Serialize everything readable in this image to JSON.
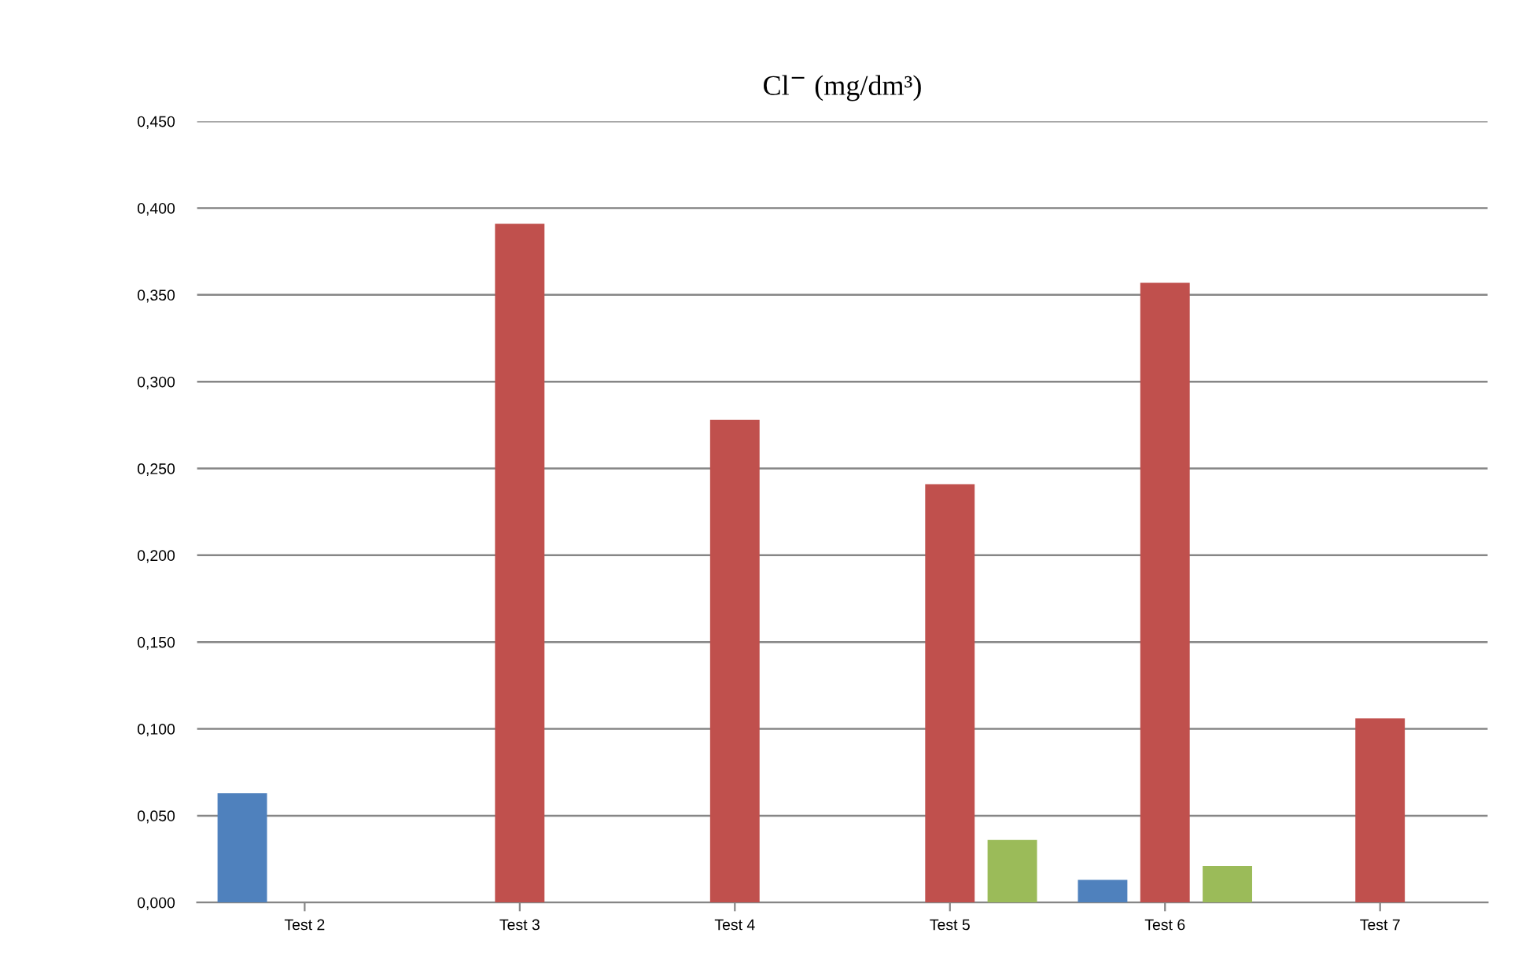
{
  "chart_data": {
    "type": "bar",
    "title": "Cl$^{−}$ (mg/dm³)",
    "categories": [
      "Test 2",
      "Test 3",
      "Test 4",
      "Test 5",
      "Test 6",
      "Test 7"
    ],
    "series": [
      {
        "color": "#4f81bd",
        "values": [
          0.063,
          null,
          null,
          null,
          0.013,
          null
        ]
      },
      {
        "color": "#c0504d",
        "values": [
          null,
          0.391,
          0.278,
          0.241,
          0.357,
          0.106
        ]
      },
      {
        "color": "#9bbb59",
        "values": [
          null,
          null,
          null,
          0.036,
          0.021,
          null
        ]
      }
    ],
    "ylim": [
      0,
      0.45
    ],
    "yticks": [
      {
        "value": 0,
        "label": "0,000"
      },
      {
        "value": 0.05,
        "label": "0,050"
      },
      {
        "value": 0.1,
        "label": "0,100"
      },
      {
        "value": 0.15,
        "label": "0,150"
      },
      {
        "value": 0.2,
        "label": "0,200"
      },
      {
        "value": 0.25,
        "label": "0,250"
      },
      {
        "value": 0.3,
        "label": "0,300"
      },
      {
        "value": 0.35,
        "label": "0,350"
      },
      {
        "value": 0.4,
        "label": "0,400"
      },
      {
        "value": 0.45,
        "label": "0,450"
      }
    ],
    "grid": "y"
  }
}
